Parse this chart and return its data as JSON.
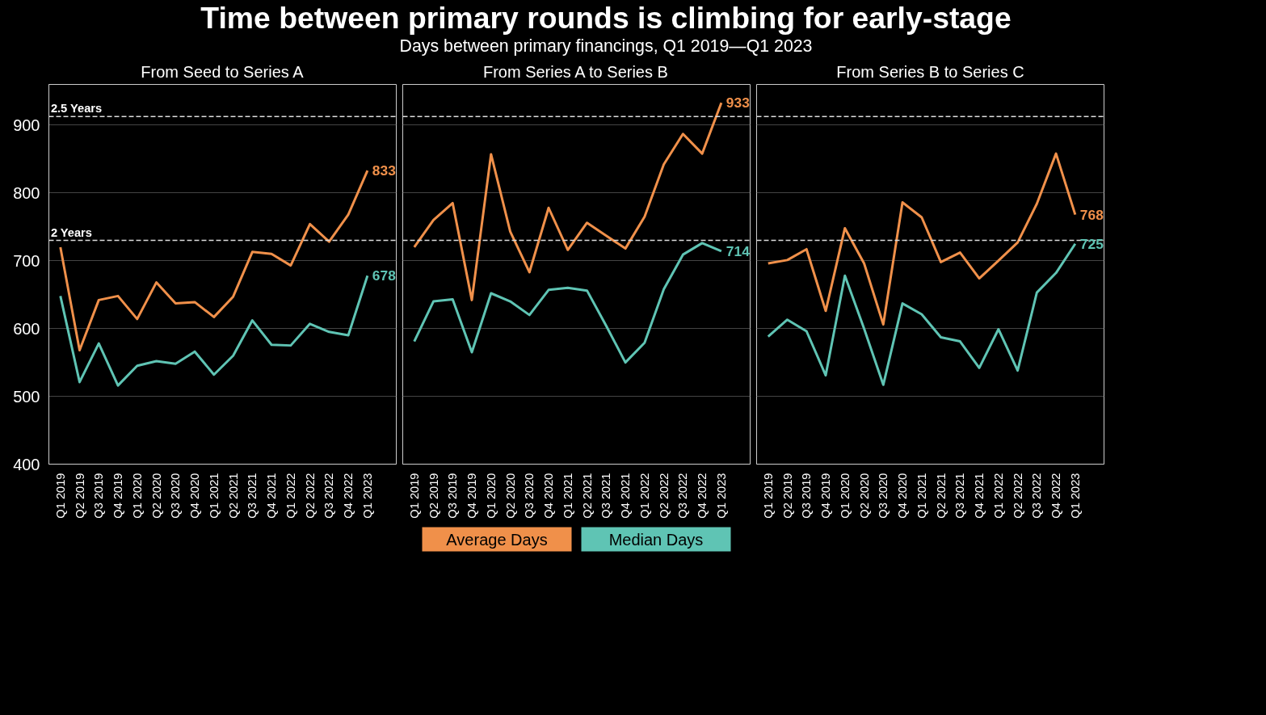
{
  "chart_data": [
    {
      "type": "line",
      "title": "From Seed to Series A",
      "annotations": [
        "Time between primary rounds is climbing for early-stage",
        "Days between primary financings, Q1 2019—Q1 2023"
      ],
      "categories": [
        "Q1 2019",
        "Q2 2019",
        "Q3 2019",
        "Q4 2019",
        "Q1 2020",
        "Q2 2020",
        "Q3 2020",
        "Q4 2020",
        "Q1 2021",
        "Q2 2021",
        "Q3 2021",
        "Q4 2021",
        "Q1 2022",
        "Q2 2022",
        "Q3 2022",
        "Q4 2022",
        "Q1 2023"
      ],
      "series": [
        {
          "color": "#f0904a",
          "values": [
            720,
            568,
            642,
            648,
            614,
            668,
            637,
            639,
            617,
            647,
            713,
            710,
            693,
            754,
            728,
            768,
            833
          ],
          "value_labels": [
            null,
            null,
            null,
            null,
            null,
            null,
            null,
            null,
            null,
            null,
            null,
            null,
            null,
            null,
            null,
            null,
            "833"
          ]
        },
        {
          "color": "#5fc4b4",
          "values": [
            648,
            521,
            578,
            516,
            545,
            552,
            548,
            566,
            532,
            560,
            612,
            576,
            575,
            607,
            595,
            590,
            678
          ],
          "value_labels": [
            null,
            null,
            null,
            null,
            null,
            null,
            null,
            null,
            null,
            null,
            null,
            null,
            null,
            null,
            null,
            null,
            "678"
          ]
        }
      ],
      "ylim": [
        400,
        960
      ],
      "yticks": [
        400,
        500,
        600,
        700,
        800,
        900
      ],
      "grid": "y",
      "ref_lines": [
        {
          "axis": "y",
          "value": 730,
          "label": "2 Years",
          "line_style": "dashed",
          "color": "#dddddd"
        },
        {
          "axis": "y",
          "value": 912.5,
          "label": "2.5 Years",
          "line_style": "dashed",
          "color": "#dddddd"
        }
      ]
    },
    {
      "type": "line",
      "title": "From Series A to Series B",
      "categories": [
        "Q1 2019",
        "Q2 2019",
        "Q3 2019",
        "Q4 2019",
        "Q1 2020",
        "Q2 2020",
        "Q3 2020",
        "Q4 2020",
        "Q1 2021",
        "Q2 2021",
        "Q3 2021",
        "Q4 2021",
        "Q1 2022",
        "Q2 2022",
        "Q3 2022",
        "Q4 2022",
        "Q1 2023"
      ],
      "series": [
        {
          "name": "Average Days",
          "color": "#f0904a",
          "values": [
            720,
            760,
            785,
            642,
            857,
            743,
            683,
            778,
            716,
            756,
            737,
            718,
            765,
            842,
            887,
            858,
            933
          ],
          "value_labels": [
            null,
            null,
            null,
            null,
            null,
            null,
            null,
            null,
            null,
            null,
            null,
            null,
            null,
            null,
            null,
            null,
            "933"
          ]
        },
        {
          "name": "Median Days",
          "color": "#5fc4b4",
          "values": [
            581,
            640,
            643,
            565,
            652,
            640,
            620,
            657,
            660,
            656,
            604,
            550,
            579,
            658,
            709,
            726,
            714
          ],
          "value_labels": [
            null,
            null,
            null,
            null,
            null,
            null,
            null,
            null,
            null,
            null,
            null,
            null,
            null,
            null,
            null,
            null,
            "714"
          ]
        }
      ],
      "ylim": [
        400,
        960
      ],
      "yticks": [
        400,
        500,
        600,
        700,
        800,
        900
      ],
      "tick_labels": "x",
      "grid": "y",
      "legend": "bottom",
      "ref_lines": [
        {
          "axis": "y",
          "value": 730,
          "line_style": "dashed",
          "color": "#dddddd"
        },
        {
          "axis": "y",
          "value": 912.5,
          "line_style": "dashed",
          "color": "#dddddd"
        }
      ]
    },
    {
      "type": "line",
      "title": "From Series B to Series C",
      "categories": [
        "Q1 2019",
        "Q2 2019",
        "Q3 2019",
        "Q4 2019",
        "Q1 2020",
        "Q2 2020",
        "Q3 2020",
        "Q4 2020",
        "Q1 2021",
        "Q2 2021",
        "Q3 2021",
        "Q4 2021",
        "Q1 2022",
        "Q2 2022",
        "Q3 2022",
        "Q4 2022",
        "Q1 2023"
      ],
      "series": [
        {
          "color": "#f0904a",
          "values": [
            696,
            701,
            717,
            626,
            748,
            696,
            606,
            786,
            764,
            698,
            712,
            674,
            700,
            727,
            784,
            858,
            768
          ],
          "value_labels": [
            null,
            null,
            null,
            null,
            null,
            null,
            null,
            null,
            null,
            null,
            null,
            null,
            null,
            null,
            null,
            null,
            "768"
          ]
        },
        {
          "color": "#5fc4b4",
          "values": [
            588,
            613,
            596,
            531,
            678,
            600,
            517,
            637,
            621,
            587,
            581,
            542,
            599,
            538,
            653,
            682,
            725
          ],
          "value_labels": [
            null,
            null,
            null,
            null,
            null,
            null,
            null,
            null,
            null,
            null,
            null,
            null,
            null,
            null,
            null,
            null,
            "725"
          ]
        }
      ],
      "ylim": [
        400,
        960
      ],
      "yticks": [
        400,
        500,
        600,
        700,
        800,
        900
      ],
      "tick_labels": "x",
      "grid": "y",
      "ref_lines": [
        {
          "axis": "y",
          "value": 730,
          "line_style": "dashed",
          "color": "#dddddd"
        },
        {
          "axis": "y",
          "value": 912.5,
          "line_style": "dashed",
          "color": "#dddddd"
        }
      ]
    }
  ]
}
